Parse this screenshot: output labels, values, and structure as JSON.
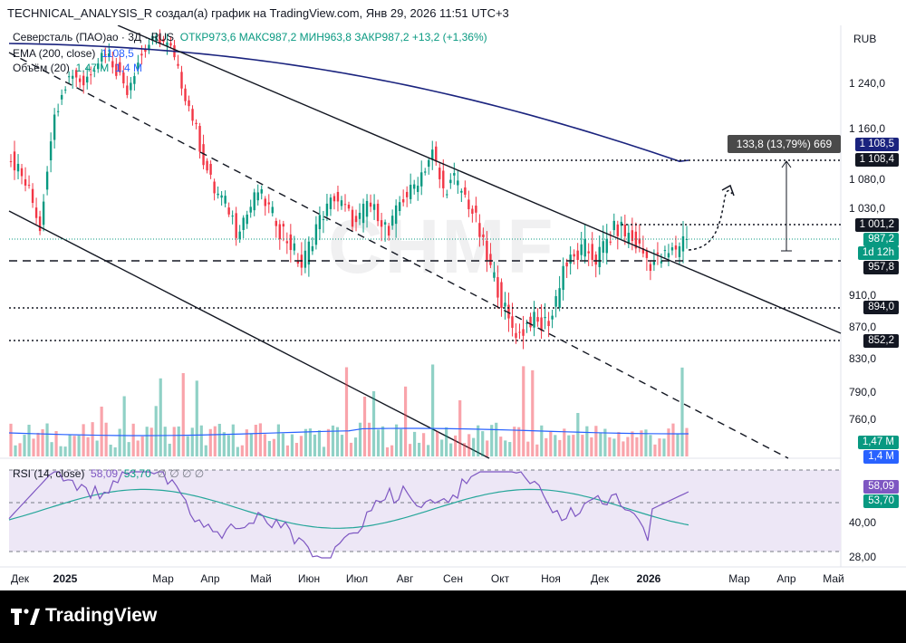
{
  "header": {
    "title": "TECHNICAL_ANALYSIS_R создал(а) график на TradingView.com, Янв 29, 2026 11:51 UTC+3"
  },
  "legend": {
    "symbol": "Северсталь (ПАО)ао · 3Д · RUS",
    "ohlc": "ОТКР973,6  МАКС987,2  МИН963,8  ЗАКР987,2  +13,2 (+1,36%)",
    "ema_label": "EMA (200, close)",
    "ema_value": "1108,5",
    "vol_label": "Объём (20)",
    "vol_value_1": "1,47 M",
    "vol_value_2": "1,4 M",
    "rsi_label": "RSI (14, close)",
    "rsi_value_1": "58,09",
    "rsi_value_2": "53,70",
    "rsi_extra": "∅ ∅ ∅ ∅"
  },
  "watermark": "CHMF",
  "currency": "RUB",
  "measure_tooltip": "133,8 (13,79%) 669",
  "price_tags": {
    "ema": "1 108,5",
    "target": "1 108,4",
    "resistance": "1 001,2",
    "last": "987,2",
    "countdown": "1d 12h",
    "support": "957,8",
    "s2": "894,0",
    "s3": "852,2",
    "vol1": "1,47 M",
    "vol2": "1,4 M",
    "rsi1": "58,09",
    "rsi2": "53,70"
  },
  "colors": {
    "up": "#089981",
    "down": "#f23645",
    "ema": "#1a237e",
    "rsi": "#7e57c2",
    "rsi_ma": "#26a69a",
    "rsi_band": "#ede7f6"
  },
  "footer": {
    "brand": "TradingView"
  },
  "chart_data": [
    {
      "type": "candlestick",
      "name": "Северсталь (ПАО)ао",
      "timeframe": "3Д",
      "yticks": [
        "1 240,0",
        "1 160,0",
        "1 080,0",
        "1 030,0",
        "910,0",
        "870,0",
        "830,0",
        "790,0",
        "760,0"
      ],
      "xticks": [
        "Дек",
        "2025",
        "Мар",
        "Апр",
        "Май",
        "Июн",
        "Июл",
        "Авг",
        "Сен",
        "Окт",
        "Ноя",
        "Дек",
        "2026",
        "Мар",
        "Апр",
        "Май"
      ],
      "close_series": [
        1120,
        1095,
        1060,
        1000,
        1150,
        1230,
        1260,
        1240,
        1275,
        1300,
        1265,
        1230,
        1280,
        1310,
        1320,
        1300,
        1240,
        1180,
        1110,
        1060,
        1040,
        1000,
        1020,
        1060,
        1030,
        1000,
        980,
        950,
        990,
        1020,
        1050,
        1030,
        1000,
        1040,
        1020,
        990,
        1040,
        1060,
        1090,
        1120,
        1060,
        1080,
        1050,
        1010,
        960,
        920,
        875,
        860,
        880,
        870,
        885,
        950,
        960,
        975,
        960,
        985,
        1000,
        990,
        975,
        955,
        960,
        970,
        987.2
      ],
      "ema": {
        "label": "EMA (200, close)",
        "last": 1108.5
      },
      "levels": {
        "target": 1108.4,
        "resistance": 1001.2,
        "last": 987.2,
        "support": 957.8,
        "s2": 894.0,
        "s3": 852.2
      },
      "measure": {
        "change": "133,8 (13,79%)",
        "bars": 669
      }
    },
    {
      "type": "bar",
      "name": "Объём (20)",
      "last_values": [
        "1,47 M",
        "1,4 M"
      ]
    },
    {
      "type": "line",
      "name": "RSI (14, close)",
      "yticks": [
        "40,00",
        "28,00"
      ],
      "last_values": [
        58.09,
        53.7
      ],
      "band": [
        30,
        70
      ]
    }
  ]
}
